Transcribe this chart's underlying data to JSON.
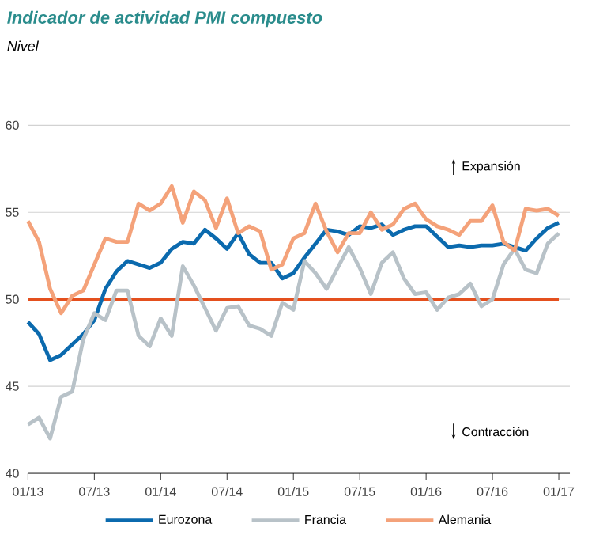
{
  "chart_data": {
    "type": "line",
    "title": "Indicador de actividad PMI compuesto",
    "subtitle": "Nivel",
    "x": [
      "2013-01",
      "2013-02",
      "2013-03",
      "2013-04",
      "2013-05",
      "2013-06",
      "2013-07",
      "2013-08",
      "2013-09",
      "2013-10",
      "2013-11",
      "2013-12",
      "2014-01",
      "2014-02",
      "2014-03",
      "2014-04",
      "2014-05",
      "2014-06",
      "2014-07",
      "2014-08",
      "2014-09",
      "2014-10",
      "2014-11",
      "2014-12",
      "2015-01",
      "2015-02",
      "2015-03",
      "2015-04",
      "2015-05",
      "2015-06",
      "2015-07",
      "2015-08",
      "2015-09",
      "2015-10",
      "2015-11",
      "2015-12",
      "2016-01",
      "2016-02",
      "2016-03",
      "2016-04",
      "2016-05",
      "2016-06",
      "2016-07",
      "2016-08",
      "2016-09",
      "2016-10",
      "2016-11",
      "2016-12",
      "2017-01"
    ],
    "series": [
      {
        "name": "Eurozona",
        "color": "#0b6aae",
        "values": [
          48.7,
          48.0,
          46.5,
          46.8,
          47.4,
          48.0,
          48.8,
          50.6,
          51.6,
          52.2,
          52.0,
          51.8,
          52.1,
          52.9,
          53.3,
          53.2,
          54.0,
          53.5,
          52.9,
          53.8,
          52.6,
          52.1,
          52.1,
          51.2,
          51.5,
          52.4,
          53.2,
          54.0,
          53.9,
          53.7,
          54.2,
          54.1,
          54.3,
          53.7,
          54.0,
          54.2,
          54.2,
          53.6,
          53.0,
          53.1,
          53.0,
          53.1,
          53.1,
          53.2,
          53.0,
          52.8,
          53.5,
          54.1,
          54.4
        ]
      },
      {
        "name": "Francia",
        "color": "#b8c2c8",
        "values": [
          42.8,
          43.2,
          42.0,
          44.4,
          44.7,
          47.7,
          49.2,
          48.8,
          50.5,
          50.5,
          47.9,
          47.3,
          48.9,
          47.9,
          51.9,
          50.8,
          49.5,
          48.2,
          49.5,
          49.6,
          48.5,
          48.3,
          47.9,
          49.8,
          49.4,
          52.2,
          51.5,
          50.6,
          51.8,
          53.0,
          51.8,
          50.3,
          52.1,
          52.7,
          51.2,
          50.3,
          50.4,
          49.4,
          50.1,
          50.3,
          50.9,
          49.6,
          50.0,
          52.0,
          52.9,
          51.7,
          51.5,
          53.2,
          53.8
        ]
      },
      {
        "name": "Alemania",
        "color": "#f4a27a",
        "values": [
          54.5,
          53.3,
          50.6,
          49.2,
          50.2,
          50.5,
          52.0,
          53.5,
          53.3,
          53.3,
          55.5,
          55.1,
          55.5,
          56.5,
          54.4,
          56.2,
          55.7,
          54.1,
          55.8,
          53.8,
          54.2,
          53.9,
          51.7,
          52.0,
          53.5,
          53.8,
          55.5,
          53.9,
          52.7,
          53.8,
          53.8,
          55.0,
          54.0,
          54.3,
          55.2,
          55.5,
          54.6,
          54.2,
          54.0,
          53.7,
          54.5,
          54.5,
          55.4,
          53.3,
          52.8,
          55.2,
          55.1,
          55.2,
          54.8
        ]
      }
    ],
    "xlim": [
      "2013-01",
      "2017-02"
    ],
    "xticks": [
      {
        "value": "2013-01",
        "label": "01/13"
      },
      {
        "value": "2013-07",
        "label": "07/13"
      },
      {
        "value": "2014-01",
        "label": "01/14"
      },
      {
        "value": "2014-07",
        "label": "07/14"
      },
      {
        "value": "2015-01",
        "label": "01/15"
      },
      {
        "value": "2015-07",
        "label": "07/15"
      },
      {
        "value": "2016-01",
        "label": "01/16"
      },
      {
        "value": "2016-07",
        "label": "07/16"
      },
      {
        "value": "2017-01",
        "label": "01/17"
      }
    ],
    "ylim": [
      40,
      60
    ],
    "yticks": [
      40,
      45,
      50,
      55,
      60
    ],
    "ref_lines": [
      {
        "axis": "y",
        "value": 50,
        "color": "#e4501e"
      }
    ],
    "annotations": [
      "Expansión",
      "Contracción"
    ],
    "grid": "y",
    "legend": "bottom",
    "marker": "none",
    "line_style": "solid"
  }
}
